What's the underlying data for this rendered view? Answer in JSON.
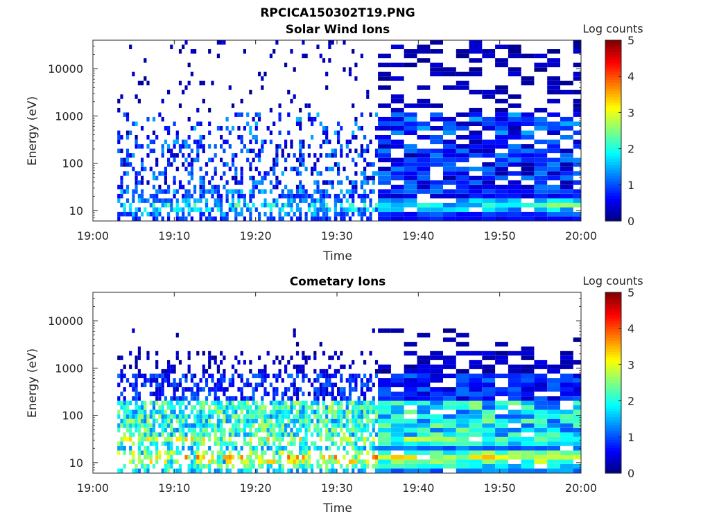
{
  "figure_title": "RPCICA150302T19.PNG",
  "chart_data": [
    {
      "type": "heatmap",
      "title": "Solar Wind Ions",
      "xlabel": "Time",
      "ylabel": "Energy (eV)",
      "x_ticks": [
        "19:00",
        "19:10",
        "19:20",
        "19:30",
        "19:40",
        "19:50",
        "20:00"
      ],
      "y_ticks": [
        "10",
        "100",
        "1000",
        "10000"
      ],
      "y_scale": "log",
      "ylim": [
        6,
        40000
      ],
      "xlim": [
        "19:00",
        "20:00"
      ],
      "colorbar_label": "Log counts",
      "colorbar_ticks": [
        "0",
        "1",
        "2",
        "3",
        "4",
        "5"
      ],
      "clim": [
        0,
        5
      ],
      "data_start": "19:03",
      "data_end": "20:00",
      "low_energy_bands_log_counts": {
        "before_19_35": [
          0.8,
          1.2,
          1.5,
          1.8,
          1.3
        ],
        "after_19_35": [
          0.6,
          0.9,
          1.4,
          1.9,
          1.6
        ]
      }
    },
    {
      "type": "heatmap",
      "title": "Cometary Ions",
      "xlabel": "Time",
      "ylabel": "Energy (eV)",
      "x_ticks": [
        "19:00",
        "19:10",
        "19:20",
        "19:30",
        "19:40",
        "19:50",
        "20:00"
      ],
      "y_ticks": [
        "10",
        "100",
        "1000",
        "10000"
      ],
      "y_scale": "log",
      "ylim": [
        6,
        40000
      ],
      "xlim": [
        "19:00",
        "20:00"
      ],
      "colorbar_label": "Log counts",
      "colorbar_ticks": [
        "0",
        "1",
        "2",
        "3",
        "4",
        "5"
      ],
      "clim": [
        0,
        5
      ],
      "data_start": "19:03",
      "data_end": "20:00",
      "low_energy_bands_log_counts": {
        "before_19_35": [
          1.6,
          2.2,
          2.8,
          3.2,
          2.6
        ],
        "after_19_35": [
          1.2,
          1.8,
          2.4,
          2.9,
          2.2
        ]
      }
    }
  ]
}
